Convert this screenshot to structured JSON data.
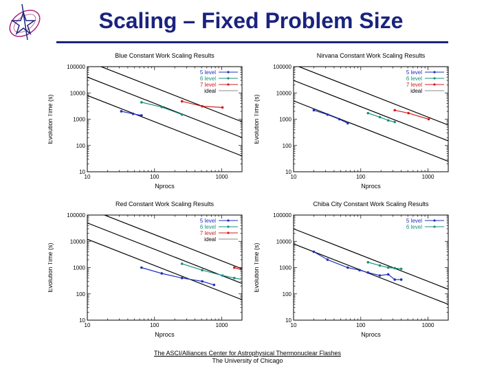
{
  "slide": {
    "title": "Scaling – Fixed Problem Size",
    "footer_line1": "The ASCI/Alliances Center for Astrophysical Thermonuclear Flashes",
    "footer_line2": "The University of Chicago"
  },
  "colors": {
    "title": "#1a237e",
    "s5": "#1f2fbf",
    "s6": "#17907a",
    "s7": "#d01c1c",
    "ideal": "#000000"
  },
  "chart_data": [
    {
      "type": "line",
      "title": "Blue  Constant Work Scaling Results",
      "xlabel": "Nprocs",
      "ylabel": "Evolution Time (s)",
      "xscale": "log",
      "yscale": "log",
      "xlim": [
        10,
        2000
      ],
      "ylim": [
        10,
        100000
      ],
      "xticks": [
        "10",
        "100",
        "1000"
      ],
      "yticks": [
        "10",
        "100",
        "1000",
        "10000",
        "100000"
      ],
      "legend": [
        "5 level",
        "6 level",
        "7 level",
        "ideal"
      ],
      "series": [
        {
          "name": "5 level",
          "color": "#1f2fbf",
          "x": [
            32,
            48,
            64
          ],
          "y": [
            2000,
            1600,
            1400
          ]
        },
        {
          "name": "6 level",
          "color": "#17907a",
          "x": [
            64,
            128,
            256
          ],
          "y": [
            4400,
            2900,
            1500
          ]
        },
        {
          "name": "7 level",
          "color": "#d01c1c",
          "x": [
            256,
            512,
            1024
          ],
          "y": [
            4800,
            3100,
            2800
          ]
        }
      ],
      "ideal": [
        {
          "x": [
            10,
            2000
          ],
          "y": [
            8000,
            40
          ]
        },
        {
          "x": [
            10,
            2000
          ],
          "y": [
            40000,
            200
          ]
        },
        {
          "x": [
            10,
            2000
          ],
          "y": [
            160000,
            800
          ]
        }
      ]
    },
    {
      "type": "line",
      "title": "Nirvana Constant Work Scaling Results",
      "xlabel": "Nprocs",
      "ylabel": "Evolution Time (s)",
      "xscale": "log",
      "yscale": "log",
      "xlim": [
        10,
        2000
      ],
      "ylim": [
        10,
        100000
      ],
      "xticks": [
        "10",
        "100",
        "1000"
      ],
      "yticks": [
        "10",
        "100",
        "1000",
        "10000",
        "100000"
      ],
      "legend": [
        "5 level",
        "6 level",
        "7 level",
        "ideal"
      ],
      "series": [
        {
          "name": "5 level",
          "color": "#1f2fbf",
          "x": [
            20,
            32,
            48,
            64
          ],
          "y": [
            2200,
            1500,
            1000,
            700
          ]
        },
        {
          "name": "6 level",
          "color": "#17907a",
          "x": [
            128,
            192,
            256,
            320
          ],
          "y": [
            1700,
            1200,
            900,
            780
          ]
        },
        {
          "name": "7 level",
          "color": "#d01c1c",
          "x": [
            320,
            512,
            1024
          ],
          "y": [
            2200,
            1700,
            1000
          ]
        }
      ],
      "ideal": [
        {
          "x": [
            10,
            2000
          ],
          "y": [
            5000,
            25
          ]
        },
        {
          "x": [
            10,
            2000
          ],
          "y": [
            30000,
            150
          ]
        },
        {
          "x": [
            10,
            2000
          ],
          "y": [
            120000,
            600
          ]
        }
      ]
    },
    {
      "type": "line",
      "title": "Red Constant Work Scaling Results",
      "xlabel": "Nprocs",
      "ylabel": "Evolution Time (s)",
      "xscale": "log",
      "yscale": "log",
      "xlim": [
        10,
        2000
      ],
      "ylim": [
        10,
        100000
      ],
      "xticks": [
        "10",
        "100",
        "1000"
      ],
      "yticks": [
        "10",
        "100",
        "1000",
        "10000",
        "100000"
      ],
      "legend": [
        "5 level",
        "6 level",
        "7 level",
        "ideal"
      ],
      "series": [
        {
          "name": "5 level",
          "color": "#1f2fbf",
          "x": [
            64,
            128,
            256,
            512,
            768
          ],
          "y": [
            1000,
            600,
            400,
            300,
            220
          ]
        },
        {
          "name": "6 level",
          "color": "#17907a",
          "x": [
            256,
            512,
            1024,
            1536,
            2048
          ],
          "y": [
            1400,
            800,
            500,
            400,
            350
          ]
        },
        {
          "name": "7 level",
          "color": "#d01c1c",
          "x": [
            1536,
            2048
          ],
          "y": [
            1000,
            800
          ]
        }
      ],
      "ideal": [
        {
          "x": [
            10,
            2000
          ],
          "y": [
            12000,
            60
          ]
        },
        {
          "x": [
            10,
            2000
          ],
          "y": [
            50000,
            250
          ]
        },
        {
          "x": [
            10,
            2000
          ],
          "y": [
            180000,
            900
          ]
        }
      ]
    },
    {
      "type": "line",
      "title": "Chiba City Constant Work Scaling Results",
      "xlabel": "Nprocs",
      "ylabel": "Evolution Time (s)",
      "xscale": "log",
      "yscale": "log",
      "xlim": [
        10,
        2000
      ],
      "ylim": [
        10,
        100000
      ],
      "xticks": [
        "10",
        "100",
        "1000"
      ],
      "yticks": [
        "10",
        "100",
        "1000",
        "10000",
        "100000"
      ],
      "legend": [
        "5 level",
        "6 level"
      ],
      "series": [
        {
          "name": "5 level",
          "color": "#1f2fbf",
          "x": [
            20,
            32,
            64,
            96,
            128,
            192,
            256,
            320,
            400
          ],
          "y": [
            4000,
            2000,
            1000,
            800,
            650,
            500,
            550,
            350,
            350
          ]
        },
        {
          "name": "6 level",
          "color": "#17907a",
          "x": [
            128,
            192,
            256,
            320,
            400
          ],
          "y": [
            1600,
            1200,
            1000,
            950,
            900
          ]
        }
      ],
      "ideal": [
        {
          "x": [
            10,
            2000
          ],
          "y": [
            8000,
            40
          ]
        },
        {
          "x": [
            10,
            2000
          ],
          "y": [
            30000,
            150
          ]
        }
      ]
    }
  ]
}
